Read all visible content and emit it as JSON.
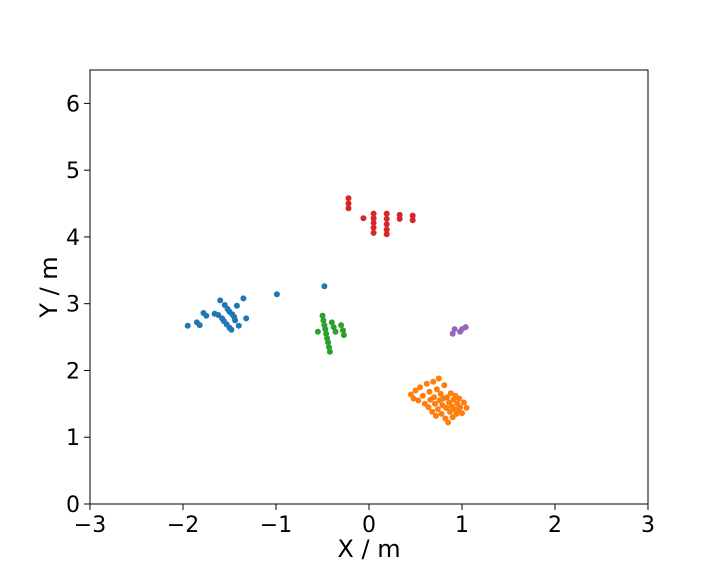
{
  "chart_data": {
    "type": "scatter",
    "title": "",
    "xlabel": "X / m",
    "ylabel": "Y / m",
    "xlim": [
      -3,
      3
    ],
    "ylim": [
      0,
      6.5
    ],
    "x_ticks": [
      -3,
      -2,
      -1,
      0,
      1,
      2,
      3
    ],
    "y_ticks": [
      0,
      1,
      2,
      3,
      4,
      5,
      6
    ],
    "x_tick_labels": [
      "−3",
      "−2",
      "−1",
      "0",
      "1",
      "2",
      "3"
    ],
    "y_tick_labels": [
      "0",
      "1",
      "2",
      "3",
      "4",
      "5",
      "6"
    ],
    "grid": false,
    "legend": "none",
    "series": [
      {
        "color": "#1f77b4",
        "points": [
          [
            -1.95,
            2.67
          ],
          [
            -1.85,
            2.72
          ],
          [
            -1.82,
            2.68
          ],
          [
            -1.78,
            2.86
          ],
          [
            -1.75,
            2.82
          ],
          [
            -1.66,
            2.85
          ],
          [
            -1.62,
            2.83
          ],
          [
            -1.6,
            3.05
          ],
          [
            -1.58,
            2.78
          ],
          [
            -1.56,
            2.74
          ],
          [
            -1.55,
            2.98
          ],
          [
            -1.53,
            2.69
          ],
          [
            -1.52,
            2.92
          ],
          [
            -1.5,
            2.64
          ],
          [
            -1.5,
            2.88
          ],
          [
            -1.48,
            2.61
          ],
          [
            -1.47,
            2.84
          ],
          [
            -1.45,
            2.8
          ],
          [
            -1.44,
            2.75
          ],
          [
            -1.42,
            2.97
          ],
          [
            -1.4,
            2.67
          ],
          [
            -1.35,
            3.08
          ],
          [
            -1.32,
            2.78
          ],
          [
            -0.99,
            3.14
          ],
          [
            -0.48,
            3.26
          ]
        ]
      },
      {
        "color": "#ff7f0e",
        "points": [
          [
            0.45,
            1.64
          ],
          [
            0.48,
            1.58
          ],
          [
            0.5,
            1.7
          ],
          [
            0.53,
            1.55
          ],
          [
            0.55,
            1.75
          ],
          [
            0.58,
            1.62
          ],
          [
            0.6,
            1.5
          ],
          [
            0.62,
            1.8
          ],
          [
            0.64,
            1.45
          ],
          [
            0.65,
            1.68
          ],
          [
            0.66,
            1.56
          ],
          [
            0.68,
            1.38
          ],
          [
            0.69,
            1.83
          ],
          [
            0.7,
            1.6
          ],
          [
            0.71,
            1.5
          ],
          [
            0.72,
            1.32
          ],
          [
            0.73,
            1.72
          ],
          [
            0.74,
            1.42
          ],
          [
            0.75,
            1.88
          ],
          [
            0.76,
            1.55
          ],
          [
            0.77,
            1.65
          ],
          [
            0.78,
            1.35
          ],
          [
            0.79,
            1.48
          ],
          [
            0.8,
            1.58
          ],
          [
            0.81,
            1.78
          ],
          [
            0.82,
            1.28
          ],
          [
            0.83,
            1.44
          ],
          [
            0.84,
            1.6
          ],
          [
            0.85,
            1.22
          ],
          [
            0.86,
            1.52
          ],
          [
            0.87,
            1.38
          ],
          [
            0.88,
            1.66
          ],
          [
            0.89,
            1.46
          ],
          [
            0.9,
            1.3
          ],
          [
            0.91,
            1.56
          ],
          [
            0.92,
            1.42
          ],
          [
            0.93,
            1.62
          ],
          [
            0.94,
            1.35
          ],
          [
            0.95,
            1.5
          ],
          [
            0.96,
            1.4
          ],
          [
            0.97,
            1.58
          ],
          [
            0.98,
            1.45
          ],
          [
            1.0,
            1.36
          ],
          [
            1.02,
            1.52
          ],
          [
            1.05,
            1.44
          ]
        ]
      },
      {
        "color": "#2ca02c",
        "points": [
          [
            -0.55,
            2.58
          ],
          [
            -0.5,
            2.82
          ],
          [
            -0.49,
            2.75
          ],
          [
            -0.48,
            2.68
          ],
          [
            -0.47,
            2.62
          ],
          [
            -0.46,
            2.55
          ],
          [
            -0.45,
            2.48
          ],
          [
            -0.44,
            2.42
          ],
          [
            -0.43,
            2.35
          ],
          [
            -0.42,
            2.28
          ],
          [
            -0.4,
            2.72
          ],
          [
            -0.38,
            2.65
          ],
          [
            -0.36,
            2.58
          ],
          [
            -0.3,
            2.68
          ],
          [
            -0.28,
            2.6
          ],
          [
            -0.27,
            2.53
          ]
        ]
      },
      {
        "color": "#d62728",
        "points": [
          [
            -0.22,
            4.58
          ],
          [
            -0.22,
            4.5
          ],
          [
            -0.22,
            4.43
          ],
          [
            -0.06,
            4.28
          ],
          [
            0.05,
            4.35
          ],
          [
            0.05,
            4.28
          ],
          [
            0.05,
            4.21
          ],
          [
            0.05,
            4.14
          ],
          [
            0.05,
            4.06
          ],
          [
            0.19,
            4.35
          ],
          [
            0.19,
            4.27
          ],
          [
            0.19,
            4.19
          ],
          [
            0.19,
            4.11
          ],
          [
            0.19,
            4.04
          ],
          [
            0.33,
            4.33
          ],
          [
            0.33,
            4.27
          ],
          [
            0.47,
            4.32
          ],
          [
            0.47,
            4.25
          ]
        ]
      },
      {
        "color": "#9467bd",
        "points": [
          [
            0.9,
            2.55
          ],
          [
            0.92,
            2.62
          ],
          [
            0.98,
            2.58
          ],
          [
            1.0,
            2.62
          ],
          [
            1.04,
            2.65
          ]
        ]
      }
    ]
  }
}
